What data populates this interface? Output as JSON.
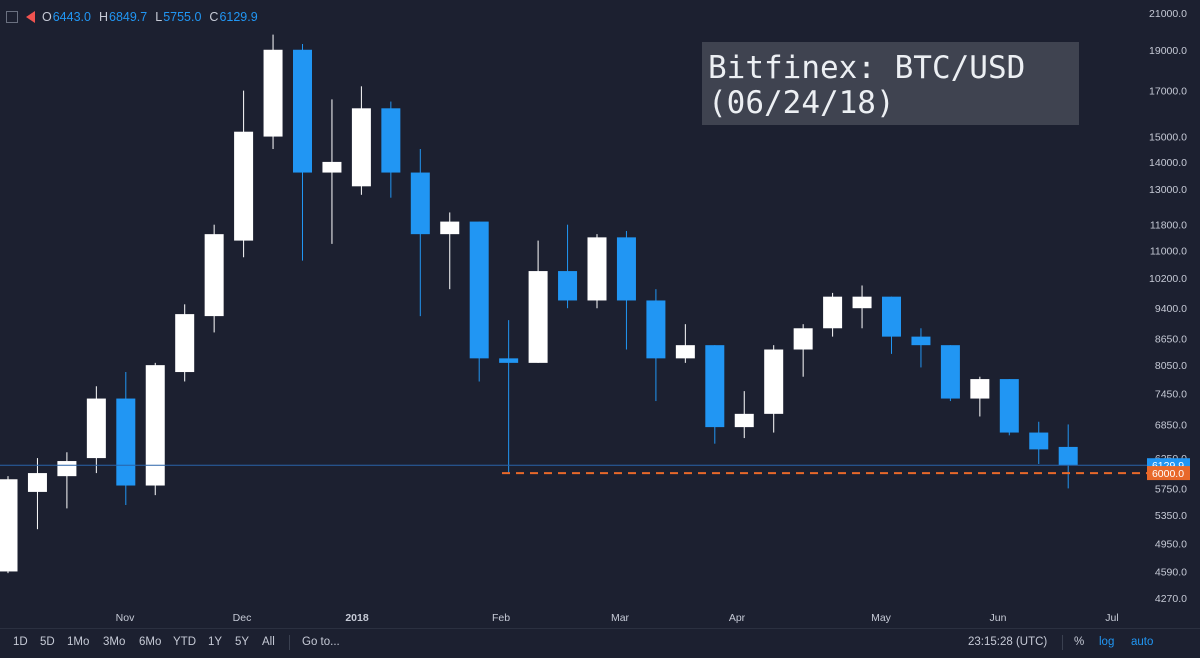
{
  "header": {
    "o_label": "O",
    "o_value": "6443.0",
    "h_label": "H",
    "h_value": "6849.7",
    "l_label": "L",
    "l_value": "5755.0",
    "c_label": "C",
    "c_value": "6129.9"
  },
  "title_line1": "Bitfinex: BTC/USD",
  "title_line2": "(06/24/18)",
  "bottom_bar": {
    "ranges": [
      "1D",
      "5D",
      "1Mo",
      "3Mo",
      "6Mo",
      "YTD",
      "1Y",
      "5Y",
      "All"
    ],
    "goto": "Go to...",
    "time": "23:15:28 (UTC)",
    "percent": "%",
    "log": "log",
    "auto": "auto"
  },
  "colors": {
    "background": "#1c2030",
    "up": "#ffffff",
    "down": "#2196f3",
    "support": "#e8682a",
    "price_badge": "#2196f3",
    "support_badge": "#e8682a"
  },
  "chart_data": {
    "type": "candlestick",
    "interval": "weekly",
    "log_scale": true,
    "grid": false,
    "ylim": [
      4000,
      21500
    ],
    "y_ticks": [
      "21000.0",
      "19000.0",
      "17000.0",
      "15000.0",
      "14000.0",
      "13000.0",
      "11800.0",
      "11000.0",
      "10200.0",
      "9400.0",
      "8650.0",
      "8050.0",
      "7450.0",
      "6850.0",
      "6250.0",
      "5750.0",
      "5350.0",
      "4950.0",
      "4590.0",
      "4270.0"
    ],
    "x_ticks": [
      "Nov",
      "Dec",
      "2018",
      "Feb",
      "Mar",
      "Apr",
      "May",
      "Jun",
      "Jul"
    ],
    "last_price_label": "6129.9",
    "support_label": "6000.0",
    "support_level": 6000,
    "candles": [
      {
        "o": 4590,
        "h": 5950,
        "l": 4570,
        "c": 5900
      },
      {
        "o": 5700,
        "h": 6250,
        "l": 5150,
        "c": 6000
      },
      {
        "o": 5950,
        "h": 6350,
        "l": 5450,
        "c": 6200
      },
      {
        "o": 6250,
        "h": 7600,
        "l": 6000,
        "c": 7350
      },
      {
        "o": 7350,
        "h": 7900,
        "l": 5500,
        "c": 5800
      },
      {
        "o": 5800,
        "h": 8100,
        "l": 5650,
        "c": 8050
      },
      {
        "o": 7900,
        "h": 9500,
        "l": 7700,
        "c": 9250
      },
      {
        "o": 9200,
        "h": 11800,
        "l": 8800,
        "c": 11500
      },
      {
        "o": 11300,
        "h": 17000,
        "l": 10800,
        "c": 15200
      },
      {
        "o": 15000,
        "h": 19800,
        "l": 14500,
        "c": 19000
      },
      {
        "o": 19000,
        "h": 19300,
        "l": 10700,
        "c": 13600
      },
      {
        "o": 13600,
        "h": 16600,
        "l": 11200,
        "c": 14000
      },
      {
        "o": 13100,
        "h": 17200,
        "l": 12800,
        "c": 16200
      },
      {
        "o": 16200,
        "h": 16500,
        "l": 12700,
        "c": 13600
      },
      {
        "o": 13600,
        "h": 14500,
        "l": 9200,
        "c": 11500
      },
      {
        "o": 11500,
        "h": 12200,
        "l": 9900,
        "c": 11900
      },
      {
        "o": 11900,
        "h": 11900,
        "l": 7700,
        "c": 8200
      },
      {
        "o": 8200,
        "h": 9100,
        "l": 6000,
        "c": 8100
      },
      {
        "o": 8100,
        "h": 11300,
        "l": 8100,
        "c": 10400
      },
      {
        "o": 10400,
        "h": 11800,
        "l": 9400,
        "c": 9600
      },
      {
        "o": 9600,
        "h": 11500,
        "l": 9400,
        "c": 11400
      },
      {
        "o": 11400,
        "h": 11600,
        "l": 8400,
        "c": 9600
      },
      {
        "o": 9600,
        "h": 9900,
        "l": 7300,
        "c": 8200
      },
      {
        "o": 8200,
        "h": 9000,
        "l": 8100,
        "c": 8500
      },
      {
        "o": 8500,
        "h": 8500,
        "l": 6500,
        "c": 6800
      },
      {
        "o": 6800,
        "h": 7500,
        "l": 6600,
        "c": 7050
      },
      {
        "o": 7050,
        "h": 8500,
        "l": 6700,
        "c": 8400
      },
      {
        "o": 8400,
        "h": 9000,
        "l": 7800,
        "c": 8900
      },
      {
        "o": 8900,
        "h": 9800,
        "l": 8700,
        "c": 9700
      },
      {
        "o": 9400,
        "h": 10000,
        "l": 8900,
        "c": 9700
      },
      {
        "o": 9700,
        "h": 9700,
        "l": 8300,
        "c": 8700
      },
      {
        "o": 8700,
        "h": 8900,
        "l": 8000,
        "c": 8500
      },
      {
        "o": 8500,
        "h": 8500,
        "l": 7300,
        "c": 7350
      },
      {
        "o": 7350,
        "h": 7800,
        "l": 7000,
        "c": 7750
      },
      {
        "o": 7750,
        "h": 7750,
        "l": 6650,
        "c": 6700
      },
      {
        "o": 6700,
        "h": 6900,
        "l": 6150,
        "c": 6400
      },
      {
        "o": 6443,
        "h": 6849.7,
        "l": 5755,
        "c": 6129.9
      }
    ]
  }
}
